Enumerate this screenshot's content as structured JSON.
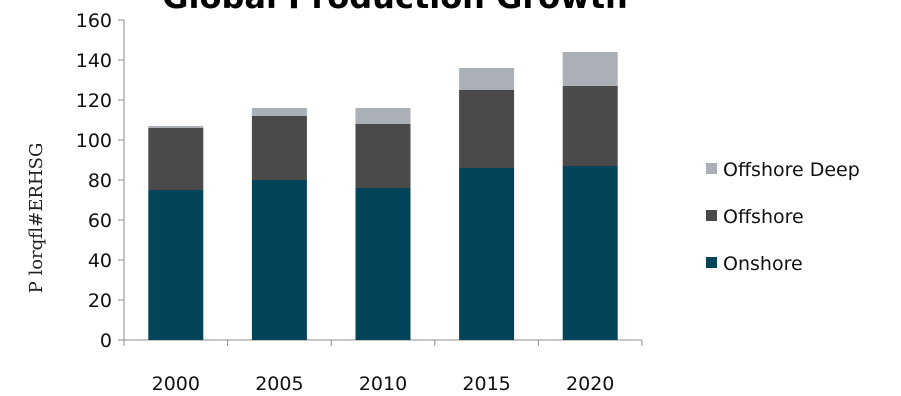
{
  "chart_data": {
    "type": "bar",
    "stacked": true,
    "title": "Global Production Growth",
    "ylabel": "P lorqfl#ERHSG",
    "xlabel": "",
    "categories": [
      "2000",
      "2005",
      "2010",
      "2015",
      "2020"
    ],
    "series": [
      {
        "name": "Onshore",
        "values": [
          75,
          80,
          76,
          86,
          87
        ],
        "color": "#04445a"
      },
      {
        "name": "Offshore",
        "values": [
          31,
          32,
          32,
          39,
          40
        ],
        "color": "#4a4a4a"
      },
      {
        "name": "Offshore Deep",
        "values": [
          1,
          4,
          8,
          11,
          17
        ],
        "color": "#aab0b6"
      }
    ],
    "ylim": [
      0,
      160
    ],
    "yticks": [
      0,
      20,
      40,
      60,
      80,
      100,
      120,
      140,
      160
    ],
    "grid": false,
    "legend": "right"
  }
}
